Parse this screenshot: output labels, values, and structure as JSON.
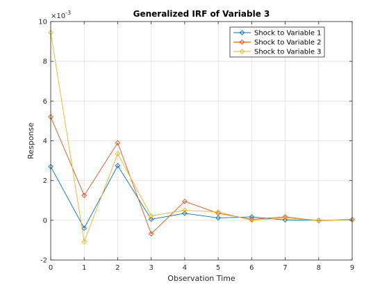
{
  "chart_data": {
    "type": "line",
    "title": "Generalized IRF of Variable 3",
    "xlabel": "Observation Time",
    "ylabel": "Response",
    "xlim": [
      0,
      9
    ],
    "ylim": [
      -2,
      10
    ],
    "x_ticks": [
      0,
      1,
      2,
      3,
      4,
      5,
      6,
      7,
      8,
      9
    ],
    "y_ticks": [
      -2,
      0,
      2,
      4,
      6,
      8,
      10
    ],
    "y_multiplier": {
      "base": "×10",
      "exponent": "-3"
    },
    "grid": true,
    "legend_position": "top-right",
    "x": [
      0,
      1,
      2,
      3,
      4,
      5,
      6,
      7,
      8,
      9
    ],
    "series": [
      {
        "name": "Shock to Variable 1",
        "color": "#0072BD",
        "marker": "diamond",
        "values": [
          2.7,
          -0.4,
          2.75,
          0.05,
          0.35,
          0.12,
          0.17,
          0.02,
          0.0,
          0.02
        ]
      },
      {
        "name": "Shock to Variable 2",
        "color": "#D95319",
        "marker": "diamond",
        "values": [
          5.2,
          1.25,
          3.9,
          -0.68,
          0.95,
          0.35,
          0.05,
          0.17,
          -0.02,
          0.05
        ]
      },
      {
        "name": "Shock to Variable 3",
        "color": "#EDB120",
        "marker": "diamond",
        "values": [
          9.45,
          -1.08,
          3.35,
          0.22,
          0.5,
          0.42,
          0.0,
          0.12,
          0.0,
          0.03
        ]
      }
    ]
  }
}
